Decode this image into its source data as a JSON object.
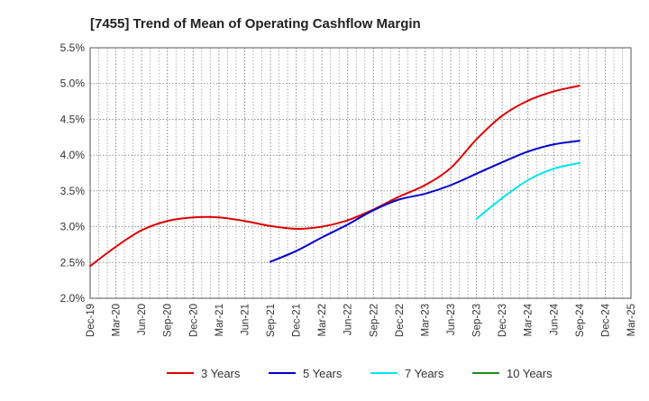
{
  "chart_data": {
    "type": "line",
    "title": "[7455]  Trend of Mean of Operating Cashflow Margin",
    "xlabel": "",
    "ylabel": "",
    "ylim": [
      2.0,
      5.5
    ],
    "y_ticks": [
      "2.0%",
      "2.5%",
      "3.0%",
      "3.5%",
      "4.0%",
      "4.5%",
      "5.0%",
      "5.5%"
    ],
    "y_tick_values": [
      2.0,
      2.5,
      3.0,
      3.5,
      4.0,
      4.5,
      5.0,
      5.5
    ],
    "x_ticks": [
      "Dec-19",
      "Mar-20",
      "Jun-20",
      "Sep-20",
      "Dec-20",
      "Mar-21",
      "Jun-21",
      "Sep-21",
      "Dec-21",
      "Mar-22",
      "Jun-22",
      "Sep-22",
      "Dec-22",
      "Mar-23",
      "Jun-23",
      "Sep-23",
      "Dec-23",
      "Mar-24",
      "Jun-24",
      "Sep-24",
      "Dec-24",
      "Mar-25"
    ],
    "grid": true,
    "legend_position": "bottom",
    "series": [
      {
        "name": "3 Years",
        "color": "#dd0000",
        "start_index": 0,
        "values": [
          2.45,
          2.72,
          2.95,
          3.08,
          3.13,
          3.13,
          3.08,
          3.01,
          2.97,
          3.0,
          3.09,
          3.24,
          3.42,
          3.58,
          3.82,
          4.22,
          4.55,
          4.76,
          4.89,
          4.97
        ]
      },
      {
        "name": "5 Years",
        "color": "#0000cc",
        "start_index": 7,
        "values": [
          2.51,
          2.66,
          2.85,
          3.03,
          3.23,
          3.38,
          3.46,
          3.58,
          3.74,
          3.9,
          4.05,
          4.15,
          4.2
        ]
      },
      {
        "name": "7 Years",
        "color": "#00e5ee",
        "start_index": 15,
        "values": [
          3.11,
          3.4,
          3.65,
          3.81,
          3.89
        ]
      },
      {
        "name": "10 Years",
        "color": "#228b22",
        "start_index": 0,
        "values": []
      }
    ]
  }
}
